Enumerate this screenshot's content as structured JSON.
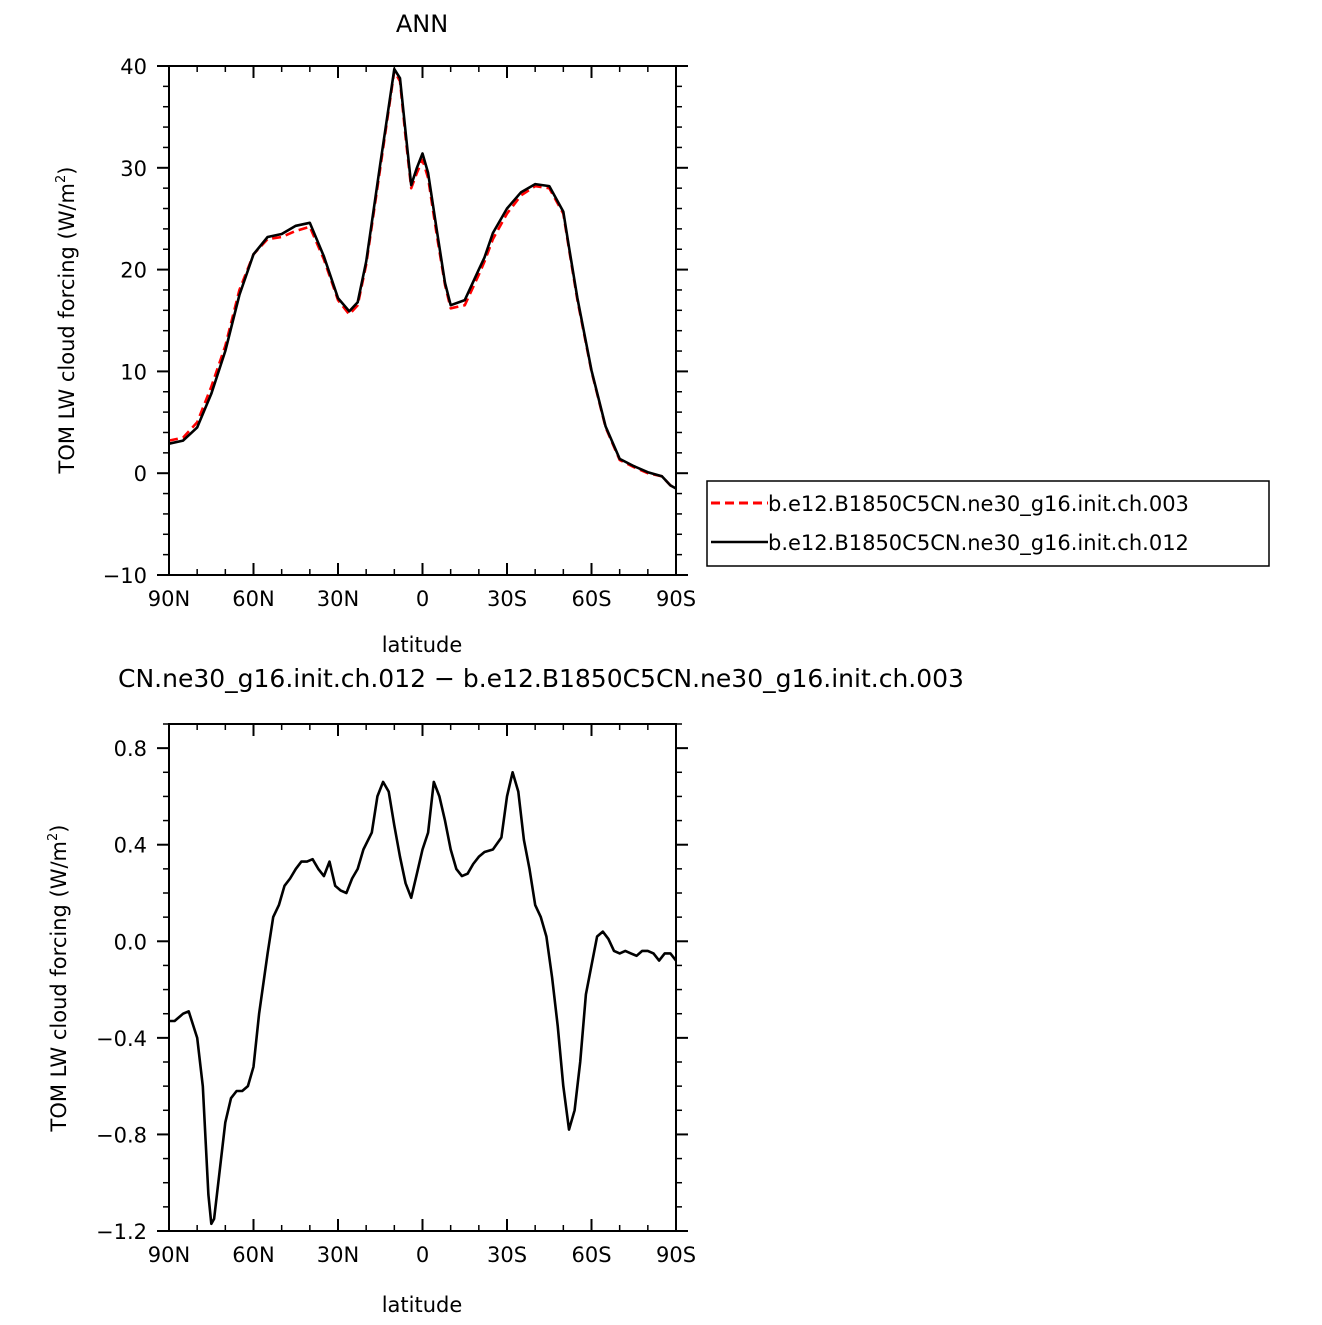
{
  "chart_data": [
    {
      "type": "line",
      "title": "ANN",
      "xlabel": "latitude",
      "ylabel": "TOM LW cloud forcing (W/m",
      "ylabel_sup": "2",
      "ylabel_tail": ")",
      "xlim": [
        90,
        -90
      ],
      "ylim": [
        -10,
        40
      ],
      "xticks": [
        90,
        60,
        30,
        0,
        -30,
        -60,
        -90
      ],
      "xtick_labels": [
        "90N",
        "60N",
        "30N",
        "0",
        "30S",
        "60S",
        "90S"
      ],
      "yticks": [
        -10,
        0,
        10,
        20,
        30,
        40
      ],
      "ytick_labels": [
        "−10",
        "0",
        "10",
        "20",
        "30",
        "40"
      ],
      "legend_position": "right",
      "series": [
        {
          "name": "b.e12.B1850C5CN.ne30_g16.init.ch.003",
          "color": "#ff0000",
          "dash": "dashed",
          "x": [
            90,
            85,
            80,
            75,
            70,
            65,
            60,
            55,
            50,
            45,
            40,
            35,
            30,
            26,
            23,
            20,
            15,
            10,
            8,
            6,
            4,
            2,
            0,
            -2,
            -5,
            -8,
            -10,
            -15,
            -20,
            -22,
            -25,
            -30,
            -35,
            -40,
            -45,
            -50,
            -52,
            -55,
            -60,
            -65,
            -70,
            -75,
            -80,
            -85,
            -88,
            -90
          ],
          "y": [
            3.2,
            3.5,
            5.0,
            8.5,
            12.5,
            18.0,
            21.5,
            23.0,
            23.2,
            23.8,
            24.2,
            21.0,
            17.0,
            15.6,
            16.5,
            20.5,
            30.0,
            39.5,
            38.5,
            33.0,
            28.0,
            29.5,
            30.8,
            29.0,
            23.5,
            18.5,
            16.2,
            16.5,
            19.5,
            20.8,
            23.0,
            25.5,
            27.3,
            28.2,
            28.0,
            25.5,
            22.0,
            17.0,
            10.0,
            4.5,
            1.3,
            0.6,
            0.0,
            -0.3,
            -1.2,
            -1.5
          ]
        },
        {
          "name": "b.e12.B1850C5CN.ne30_g16.init.ch.012",
          "color": "#000000",
          "dash": "solid",
          "x": [
            90,
            85,
            80,
            75,
            70,
            65,
            60,
            55,
            50,
            45,
            40,
            35,
            30,
            26,
            23,
            20,
            15,
            10,
            8,
            6,
            4,
            2,
            0,
            -2,
            -5,
            -8,
            -10,
            -15,
            -20,
            -22,
            -25,
            -30,
            -35,
            -40,
            -45,
            -50,
            -52,
            -55,
            -60,
            -65,
            -70,
            -75,
            -80,
            -85,
            -88,
            -90
          ],
          "y": [
            2.9,
            3.2,
            4.5,
            7.8,
            12.0,
            17.5,
            21.5,
            23.2,
            23.5,
            24.3,
            24.6,
            21.3,
            17.2,
            15.9,
            16.8,
            20.8,
            30.4,
            39.7,
            38.8,
            33.5,
            28.3,
            30.0,
            31.4,
            29.5,
            24.0,
            18.7,
            16.5,
            17.0,
            20.0,
            21.2,
            23.6,
            26.0,
            27.6,
            28.4,
            28.2,
            25.7,
            22.2,
            17.2,
            10.1,
            4.6,
            1.4,
            0.7,
            0.1,
            -0.3,
            -1.2,
            -1.5
          ]
        }
      ]
    },
    {
      "type": "line",
      "title": "CN.ne30_g16.init.ch.012 − b.e12.B1850C5CN.ne30_g16.init.ch.003",
      "xlabel": "latitude",
      "ylabel": "TOM LW cloud forcing (W/m",
      "ylabel_sup": "2",
      "ylabel_tail": ")",
      "xlim": [
        90,
        -90
      ],
      "ylim": [
        -1.2,
        0.9
      ],
      "xticks": [
        90,
        60,
        30,
        0,
        -30,
        -60,
        -90
      ],
      "xtick_labels": [
        "90N",
        "60N",
        "30N",
        "0",
        "30S",
        "60S",
        "90S"
      ],
      "yticks": [
        -1.2,
        -0.8,
        -0.4,
        0.0,
        0.4,
        0.8
      ],
      "ytick_labels": [
        "−1.2",
        "−0.8",
        "−0.4",
        "0.0",
        "0.4",
        "0.8"
      ],
      "series": [
        {
          "color": "#000000",
          "dash": "solid",
          "x": [
            90,
            88,
            85,
            83,
            80,
            78,
            76,
            75,
            74,
            72,
            70,
            68,
            66,
            64,
            62,
            60,
            58,
            55,
            53,
            51,
            49,
            47,
            45,
            43,
            41,
            39,
            37,
            35,
            33,
            31,
            29,
            27,
            25,
            23,
            21,
            18,
            16,
            14,
            12,
            10,
            8,
            6,
            4,
            2,
            0,
            -2,
            -4,
            -6,
            -8,
            -10,
            -12,
            -14,
            -16,
            -18,
            -20,
            -22,
            -25,
            -28,
            -30,
            -32,
            -34,
            -36,
            -38,
            -40,
            -42,
            -44,
            -46,
            -48,
            -50,
            -52,
            -54,
            -56,
            -58,
            -60,
            -62,
            -64,
            -66,
            -68,
            -70,
            -72,
            -74,
            -76,
            -78,
            -80,
            -82,
            -84,
            -86,
            -88,
            -90
          ],
          "y": [
            -0.33,
            -0.33,
            -0.3,
            -0.29,
            -0.4,
            -0.6,
            -1.05,
            -1.17,
            -1.15,
            -0.95,
            -0.75,
            -0.65,
            -0.62,
            -0.62,
            -0.6,
            -0.52,
            -0.3,
            -0.05,
            0.1,
            0.15,
            0.23,
            0.26,
            0.3,
            0.33,
            0.33,
            0.34,
            0.3,
            0.27,
            0.33,
            0.23,
            0.21,
            0.2,
            0.26,
            0.3,
            0.38,
            0.45,
            0.6,
            0.66,
            0.62,
            0.48,
            0.35,
            0.24,
            0.18,
            0.28,
            0.38,
            0.45,
            0.66,
            0.6,
            0.5,
            0.38,
            0.3,
            0.27,
            0.28,
            0.32,
            0.35,
            0.37,
            0.38,
            0.43,
            0.6,
            0.7,
            0.62,
            0.42,
            0.3,
            0.15,
            0.1,
            0.02,
            -0.15,
            -0.35,
            -0.6,
            -0.78,
            -0.7,
            -0.5,
            -0.22,
            -0.1,
            0.02,
            0.04,
            0.01,
            -0.04,
            -0.05,
            -0.04,
            -0.05,
            -0.06,
            -0.04,
            -0.04,
            -0.05,
            -0.08,
            -0.05,
            -0.05,
            -0.08
          ]
        }
      ]
    }
  ]
}
